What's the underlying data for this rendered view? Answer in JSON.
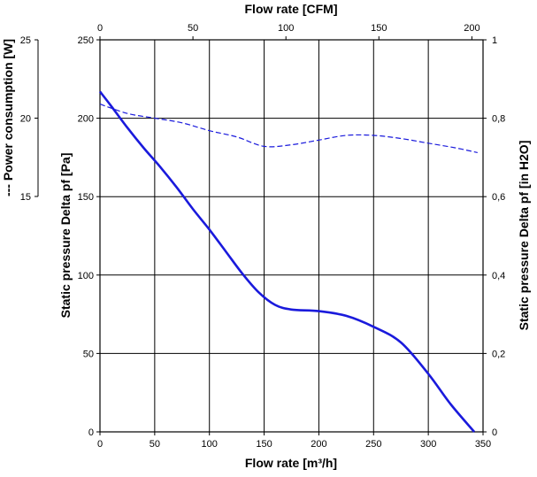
{
  "chart_data": {
    "type": "line",
    "xlabel_bottom": "Flow rate [m³/h]",
    "xlabel_top": "Flow rate [CFM]",
    "ylabel_left": "Static pressure Delta pf [Pa]",
    "ylabel_right": "Static pressure Delta pf [in H2O]",
    "ylabel_power": "--- Power consumption [W]",
    "xlim": [
      0,
      350
    ],
    "ylim": [
      0,
      250
    ],
    "xlim_cfm": [
      0,
      206
    ],
    "ylim_inh2o": [
      0,
      1
    ],
    "power_lim": [
      15,
      25
    ],
    "x_ticks": [
      "0",
      "50",
      "100",
      "150",
      "200",
      "250",
      "300",
      "350"
    ],
    "x_tick_values": [
      0,
      50,
      100,
      150,
      200,
      250,
      300,
      350
    ],
    "x_top_ticks": [
      "0",
      "50",
      "100",
      "150",
      "200"
    ],
    "x_top_tick_values": [
      0,
      50,
      100,
      150,
      200
    ],
    "y_ticks": [
      "0",
      "50",
      "100",
      "150",
      "200",
      "250"
    ],
    "y_tick_values": [
      0,
      50,
      100,
      150,
      200,
      250
    ],
    "y_right_ticks": [
      "0",
      "0,2",
      "0,4",
      "0,6",
      "0,8",
      "1"
    ],
    "y_right_tick_values": [
      0,
      0.2,
      0.4,
      0.6,
      0.8,
      1
    ],
    "power_ticks": [
      "15",
      "20",
      "25"
    ],
    "power_tick_values": [
      15,
      20,
      25
    ],
    "grid": true,
    "series": [
      {
        "name": "Static pressure",
        "style": "solid",
        "color": "#1a1adc",
        "x": [
          0,
          10,
          25,
          40,
          55,
          70,
          85,
          100,
          115,
          130,
          145,
          160,
          175,
          200,
          225,
          250,
          275,
          300,
          320,
          342
        ],
        "y": [
          217,
          208,
          194,
          181,
          169,
          156,
          142,
          129,
          115,
          101,
          89,
          81,
          78,
          77,
          74,
          67,
          57,
          37,
          18,
          0
        ]
      },
      {
        "name": "Power consumption",
        "style": "dashed",
        "color": "#1a1adc",
        "x": [
          0,
          25,
          50,
          75,
          100,
          125,
          150,
          175,
          200,
          225,
          250,
          275,
          300,
          325,
          345
        ],
        "y": [
          20.9,
          20.3,
          20.0,
          19.7,
          19.2,
          18.8,
          18.2,
          18.3,
          18.6,
          18.9,
          18.9,
          18.7,
          18.4,
          18.1,
          17.8
        ]
      }
    ]
  }
}
